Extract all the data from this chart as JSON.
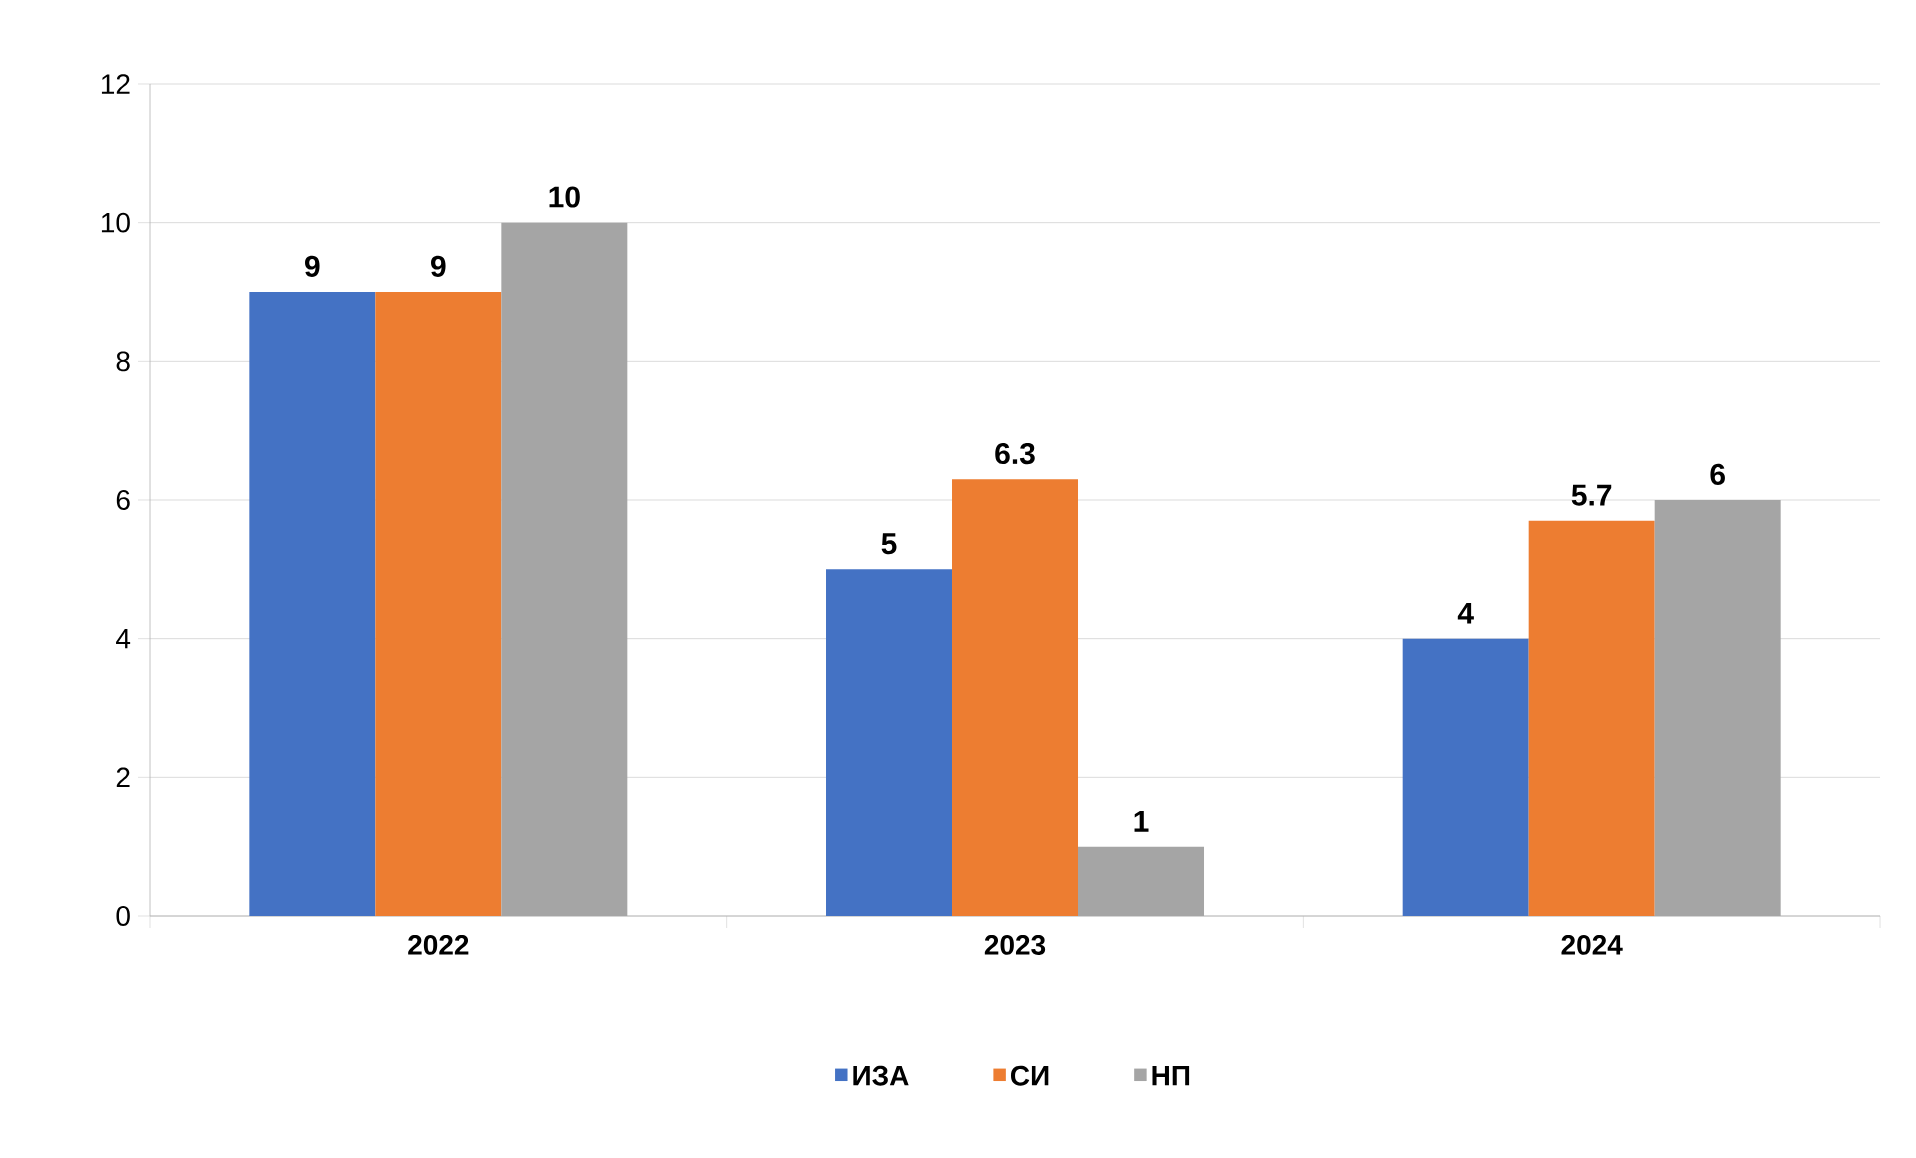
{
  "chart_data": {
    "type": "bar",
    "categories": [
      "2022",
      "2023",
      "2024"
    ],
    "series": [
      {
        "name": "ИЗА",
        "color": "#4472c4",
        "values": [
          9,
          5,
          4
        ]
      },
      {
        "name": "СИ",
        "color": "#ed7d31",
        "values": [
          9,
          6.3,
          5.7
        ]
      },
      {
        "name": "НП",
        "color": "#a5a5a5",
        "values": [
          10,
          1,
          6
        ]
      }
    ],
    "ylim": [
      0,
      12
    ],
    "yticks": [
      0,
      2,
      4,
      6,
      8,
      10,
      12
    ],
    "grid": "y",
    "legend": "bottom",
    "data_labels": true
  }
}
